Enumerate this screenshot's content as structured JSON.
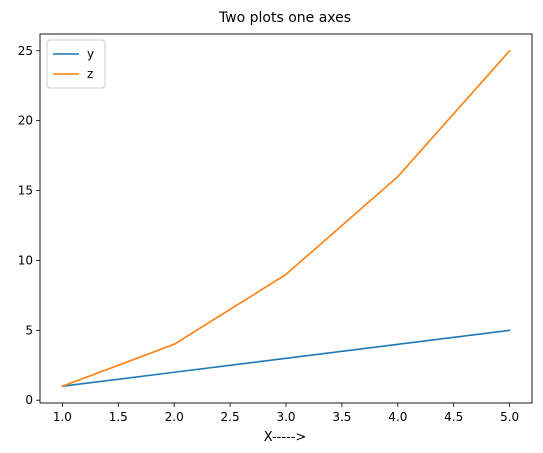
{
  "chart_data": {
    "type": "line",
    "title": "Two plots one axes",
    "xlabel": "X----->",
    "ylabel": "",
    "x": [
      1,
      2,
      3,
      4,
      5
    ],
    "series": [
      {
        "name": "y",
        "values": [
          1,
          2,
          3,
          4,
          5
        ],
        "color": "#1f77b4"
      },
      {
        "name": "z",
        "values": [
          1,
          4,
          9,
          16,
          25
        ],
        "color": "#ff7f0e"
      }
    ],
    "xlim": [
      0.8,
      5.2
    ],
    "ylim": [
      -0.2,
      26.2
    ],
    "xticks": [
      "1.0",
      "1.5",
      "2.0",
      "2.5",
      "3.0",
      "3.5",
      "4.0",
      "4.5",
      "5.0"
    ],
    "yticks": [
      "0",
      "5",
      "10",
      "15",
      "20",
      "25"
    ],
    "grid": false,
    "legend": "top-left"
  }
}
